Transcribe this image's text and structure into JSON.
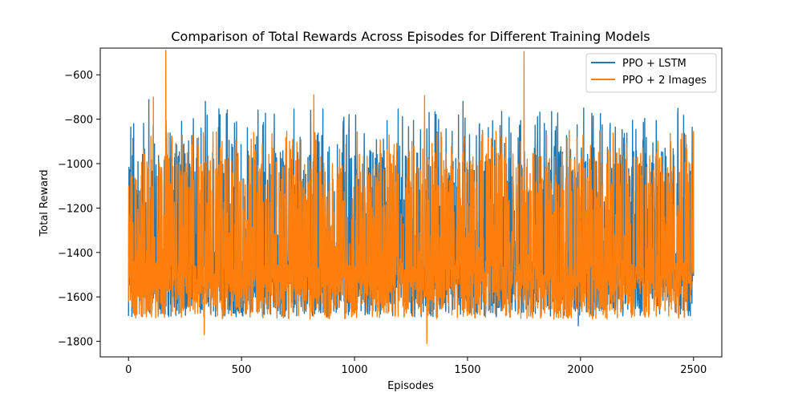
{
  "chart_data": {
    "type": "line",
    "title": "Comparison of Total Rewards Across Episodes for Different Training Models",
    "xlabel": "Episodes",
    "ylabel": "Total Reward",
    "xlim": [
      -125,
      2625
    ],
    "ylim": [
      -1870,
      -480
    ],
    "xticks": [
      0,
      500,
      1000,
      1500,
      2000,
      2500
    ],
    "yticks": [
      -1800,
      -1600,
      -1400,
      -1200,
      -1000,
      -800,
      -600
    ],
    "grid": false,
    "legend": "top-right",
    "episodes": 2500,
    "series": [
      {
        "name": "PPO + LSTM",
        "color": "#1f77b4",
        "typical_min": -1690,
        "typical_max": -800,
        "center": -1400,
        "notable_points": [
          [
            10,
            -835
          ],
          [
            90,
            -712
          ],
          [
            340,
            -720
          ],
          [
            1480,
            -720
          ],
          [
            1990,
            -1730
          ],
          [
            2430,
            -780
          ]
        ]
      },
      {
        "name": "PPO + 2 Images",
        "color": "#ff7f0e",
        "typical_min": -1700,
        "typical_max": -900,
        "center": -1400,
        "notable_points": [
          [
            165,
            -490
          ],
          [
            110,
            -700
          ],
          [
            335,
            -1770
          ],
          [
            820,
            -690
          ],
          [
            1320,
            -1810
          ],
          [
            1310,
            -695
          ],
          [
            1750,
            -495
          ]
        ]
      }
    ]
  }
}
